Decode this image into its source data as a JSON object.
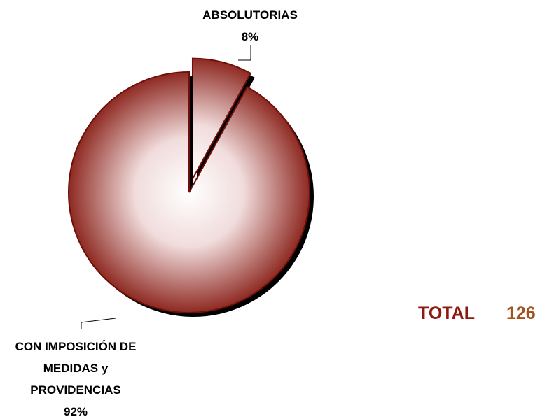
{
  "chart_data": {
    "type": "pie",
    "categories": [
      "ABSOLUTORIAS",
      "CON IMPOSICIÓN DE MEDIDAS y PROVIDENCIAS"
    ],
    "values": [
      8,
      92
    ],
    "value_labels": [
      "8%",
      "92%"
    ],
    "color": "#8e2a22",
    "explode": [
      true,
      false
    ],
    "total": {
      "label": "TOTAL",
      "value": 126
    }
  }
}
